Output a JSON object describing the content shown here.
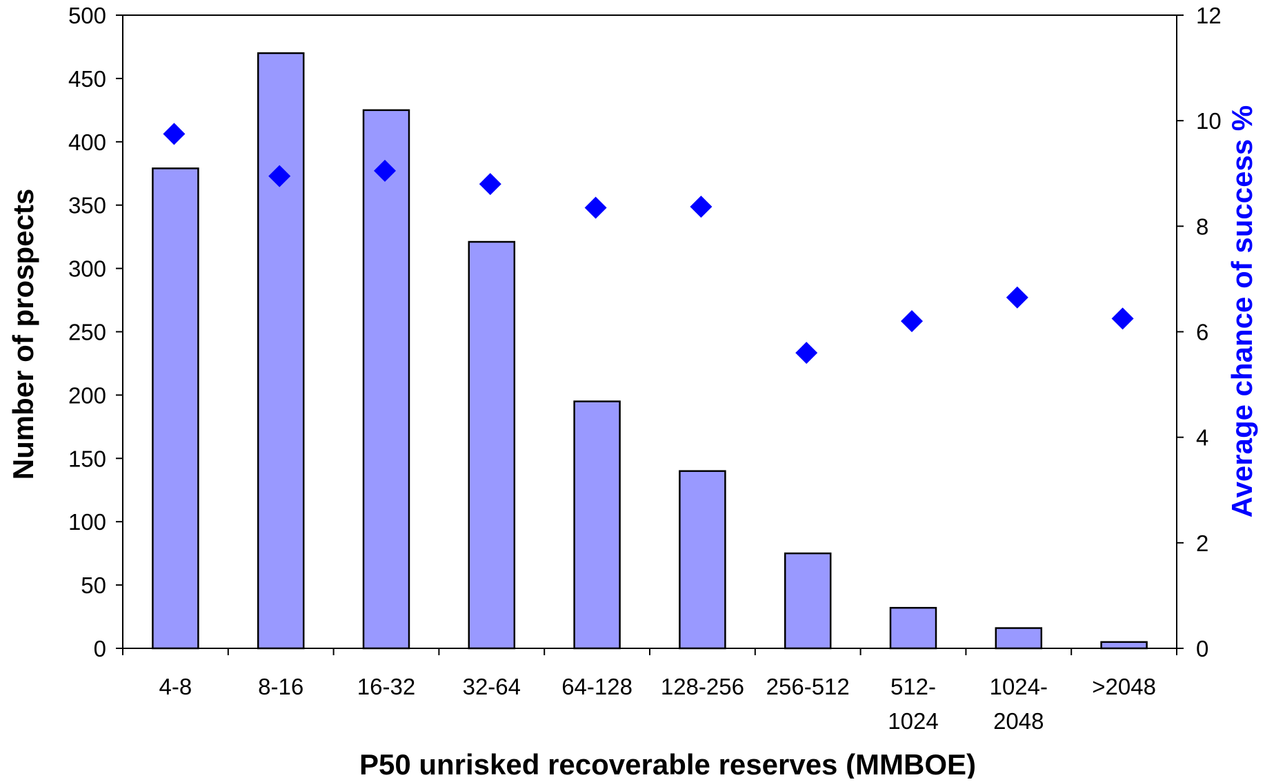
{
  "chart_data": {
    "type": "bar",
    "title": "",
    "xlabel": "P50 unrisked recoverable reserves (MMBOE)",
    "ylabel": "Number of prospects",
    "y2label": "Average chance of success %",
    "categories": [
      "4-8",
      "8-16",
      "16-32",
      "32-64",
      "64-128",
      "128-256",
      "256-512",
      "512-1024",
      "1024-2048",
      ">2048"
    ],
    "category_labels": [
      [
        "4-8"
      ],
      [
        "8-16"
      ],
      [
        "16-32"
      ],
      [
        "32-64"
      ],
      [
        "64-128"
      ],
      [
        "128-256"
      ],
      [
        "256-512"
      ],
      [
        "512-",
        "1024"
      ],
      [
        "1024-",
        "2048"
      ],
      [
        ">2048"
      ]
    ],
    "ylim": [
      0,
      500
    ],
    "yticks": [
      0,
      50,
      100,
      150,
      200,
      250,
      300,
      350,
      400,
      450,
      500
    ],
    "y2lim": [
      0,
      12
    ],
    "y2ticks": [
      0,
      2,
      4,
      6,
      8,
      10,
      12
    ],
    "grid": false,
    "series": [
      {
        "type": "bar",
        "axis": "left",
        "color": "#9999ff",
        "values": [
          379,
          470,
          425,
          321,
          195,
          140,
          75,
          32,
          16,
          5
        ]
      },
      {
        "type": "scatter",
        "axis": "right",
        "marker": "diamond",
        "color": "#0000ff",
        "values": [
          9.75,
          8.95,
          9.05,
          8.8,
          8.35,
          8.37,
          5.6,
          6.2,
          6.65,
          6.25
        ]
      }
    ],
    "colors": {
      "y2label": "#0000ff",
      "axis": "#000000"
    }
  }
}
